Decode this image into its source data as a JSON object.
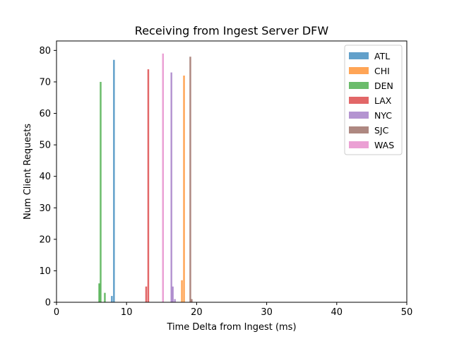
{
  "chart_data": {
    "type": "bar",
    "title": "Receiving from Ingest Server DFW",
    "xlabel": "Time Delta from Ingest (ms)",
    "ylabel": "Num Client Requests",
    "xlim": [
      0,
      50
    ],
    "ylim": [
      0,
      83
    ],
    "xticks": [
      0,
      10,
      20,
      30,
      40,
      50
    ],
    "yticks": [
      0,
      10,
      20,
      30,
      40,
      50,
      60,
      70,
      80
    ],
    "grid": false,
    "legend_position": "top-right",
    "bar_width": 0.25,
    "series": [
      {
        "name": "ATL",
        "color": "#1f77b4",
        "x": [
          7.9,
          8.2
        ],
        "values": [
          2,
          77
        ]
      },
      {
        "name": "CHI",
        "color": "#ff7f0e",
        "x": [
          17.9,
          18.2
        ],
        "values": [
          7,
          72
        ]
      },
      {
        "name": "DEN",
        "color": "#2ca02c",
        "x": [
          6.1,
          6.3,
          6.9
        ],
        "values": [
          6,
          70,
          3
        ]
      },
      {
        "name": "LAX",
        "color": "#d62728",
        "x": [
          12.8,
          13.1
        ],
        "values": [
          5,
          74
        ]
      },
      {
        "name": "NYC",
        "color": "#9467bd",
        "x": [
          16.4,
          16.6,
          16.9
        ],
        "values": [
          73,
          5,
          1
        ]
      },
      {
        "name": "SJC",
        "color": "#8c564b",
        "x": [
          19.1,
          19.3
        ],
        "values": [
          78,
          1
        ]
      },
      {
        "name": "WAS",
        "color": "#e377c2",
        "x": [
          15.2
        ],
        "values": [
          79
        ]
      }
    ]
  }
}
